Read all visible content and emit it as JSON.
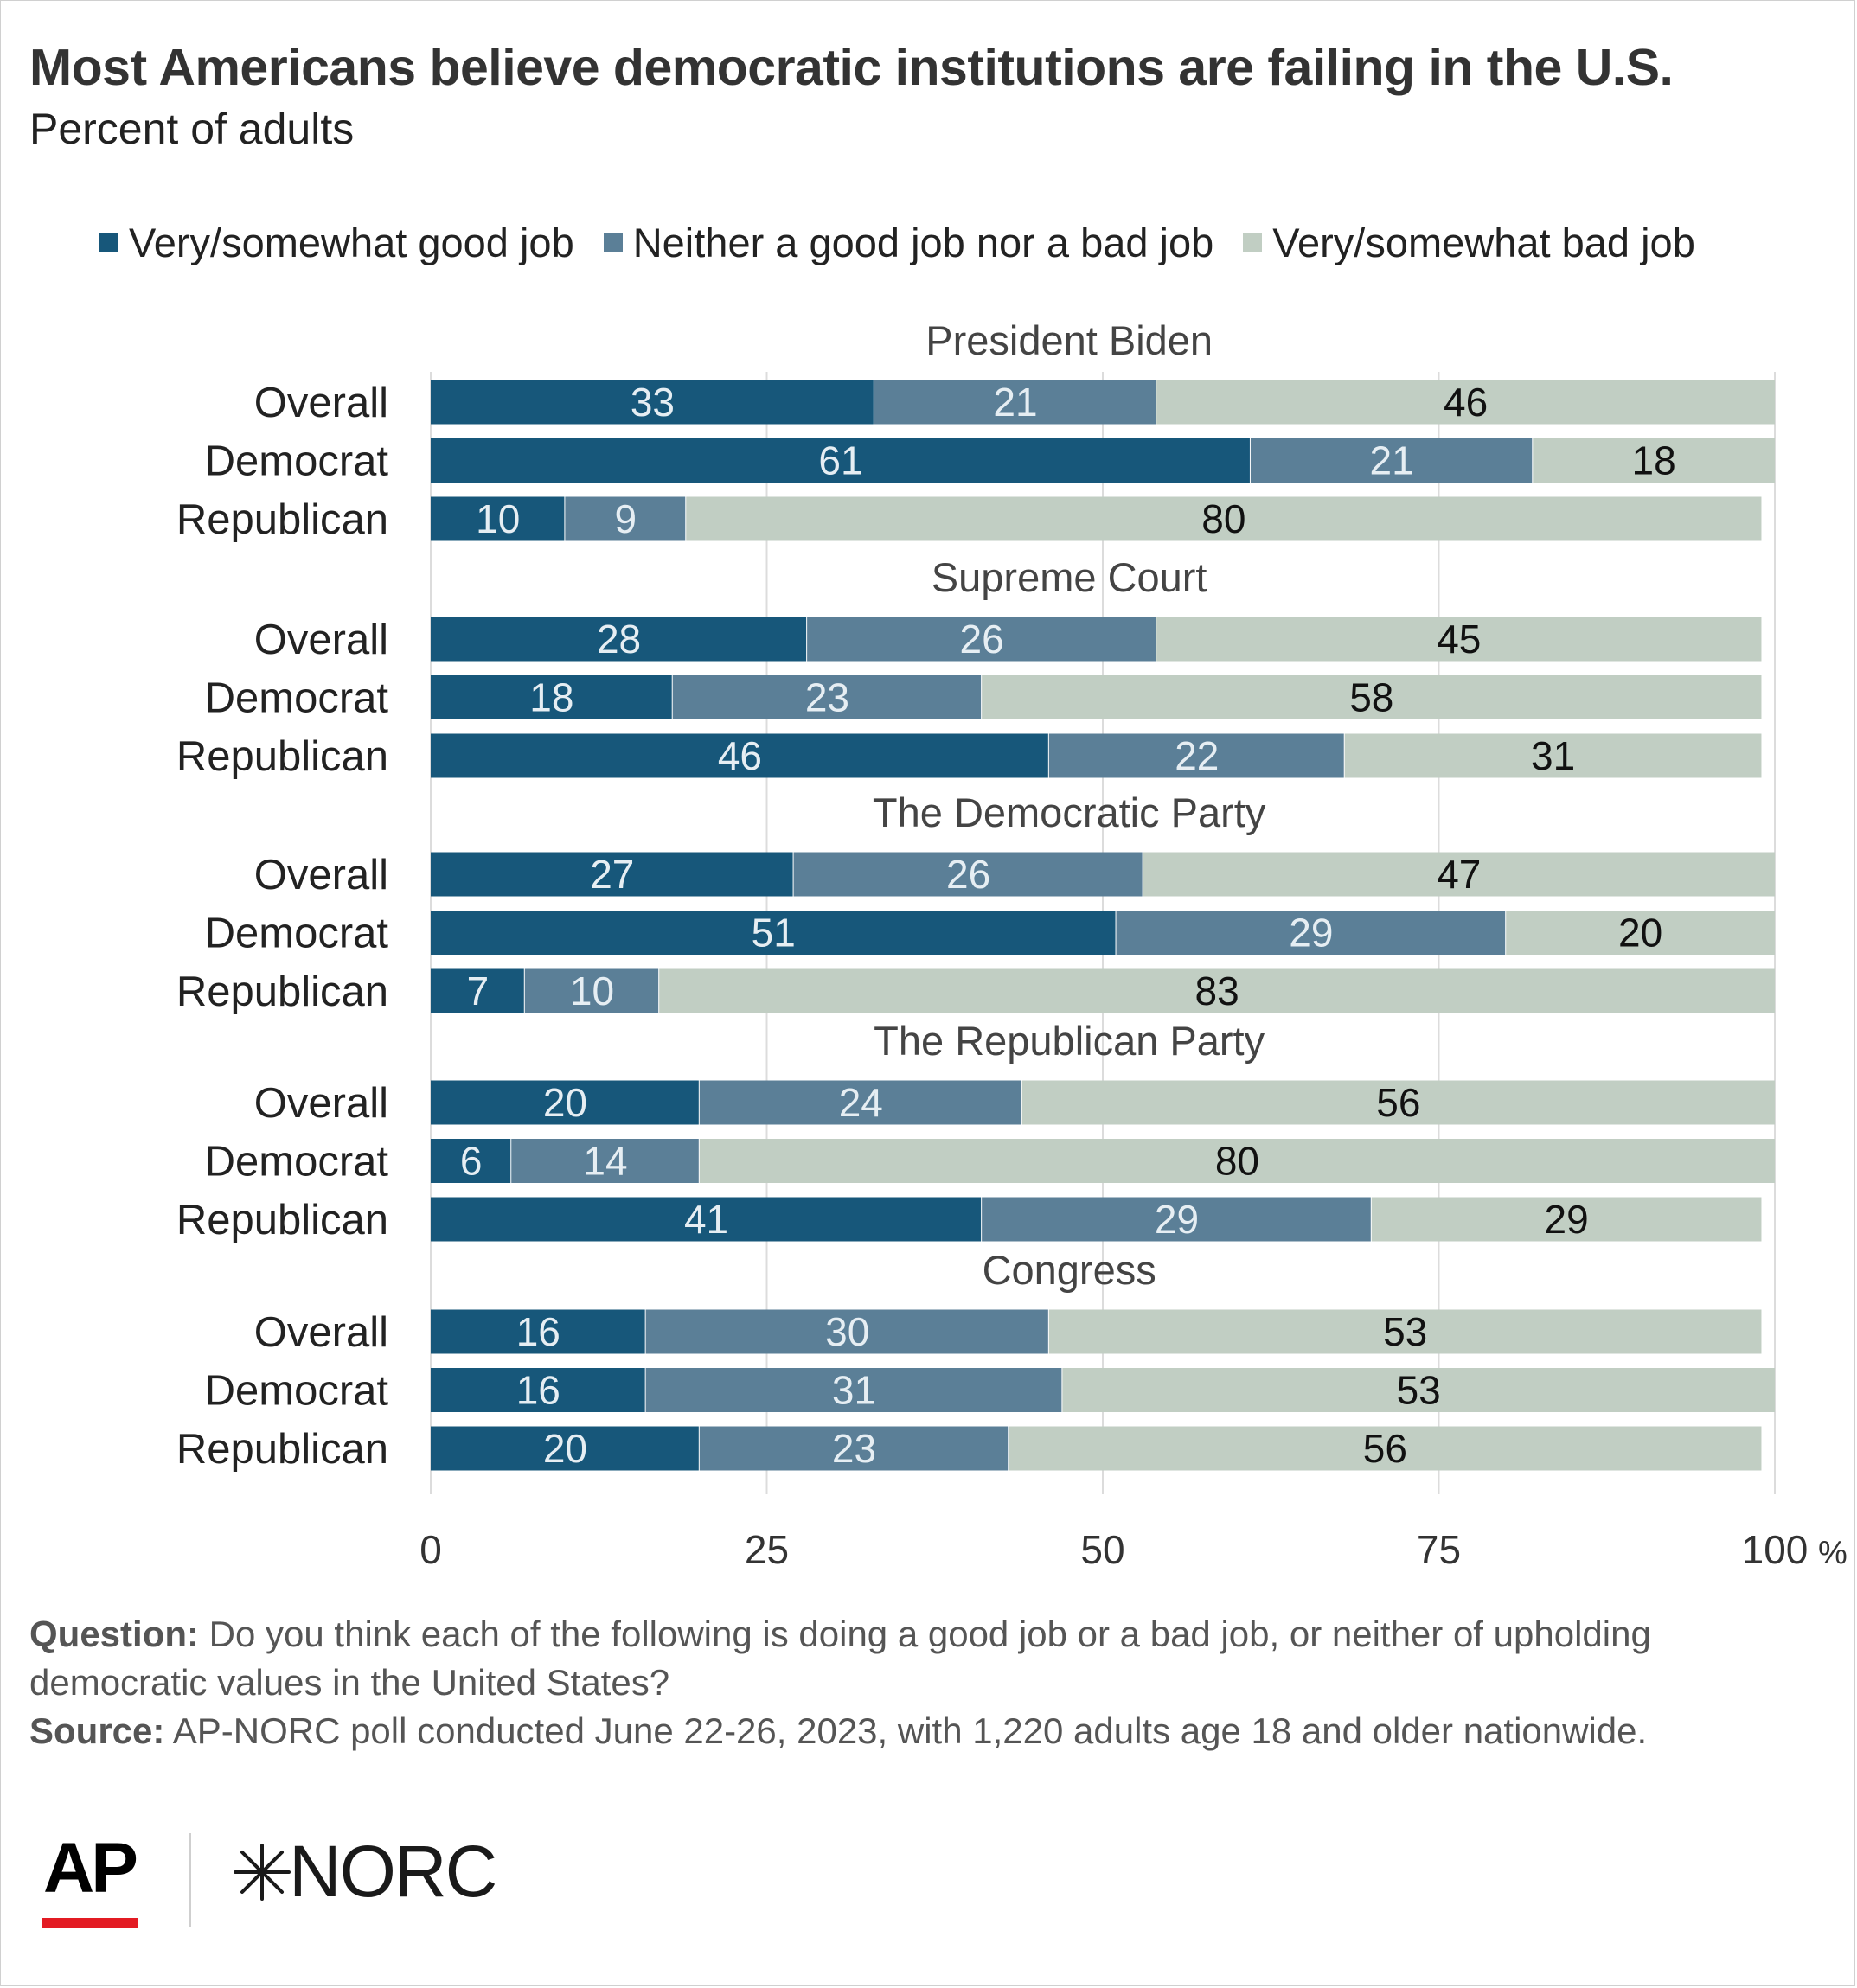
{
  "title": "Most Americans believe democratic institutions are failing in the U.S.",
  "subtitle": "Percent of adults",
  "colors": {
    "good": "#17577a",
    "neither": "#5b7f97",
    "bad": "#c1cec3",
    "grid": "#dcdcdc",
    "label_dark_bar": "#e6eef3",
    "label_light_bar": "#111111"
  },
  "chart_data": {
    "type": "bar",
    "orientation": "horizontal",
    "stacked": true,
    "title": "Most Americans believe democratic institutions are failing in the U.S.",
    "subtitle": "Percent of adults",
    "legend_position": "top",
    "legend": [
      "Very/somewhat good job",
      "Neither a good job nor a bad job",
      "Very/somewhat bad job"
    ],
    "xlim": [
      0,
      100
    ],
    "x_ticks": [
      "0",
      "25",
      "50",
      "75",
      "100"
    ],
    "x_unit": "%",
    "grid": true,
    "groups": [
      {
        "name": "President Biden",
        "rows": [
          {
            "label": "Overall",
            "values": [
              33,
              21,
              46
            ]
          },
          {
            "label": "Democrat",
            "values": [
              61,
              21,
              18
            ]
          },
          {
            "label": "Republican",
            "values": [
              10,
              9,
              80
            ]
          }
        ]
      },
      {
        "name": "Supreme Court",
        "rows": [
          {
            "label": "Overall",
            "values": [
              28,
              26,
              45
            ]
          },
          {
            "label": "Democrat",
            "values": [
              18,
              23,
              58
            ]
          },
          {
            "label": "Republican",
            "values": [
              46,
              22,
              31
            ]
          }
        ]
      },
      {
        "name": "The Democratic Party",
        "rows": [
          {
            "label": "Overall",
            "values": [
              27,
              26,
              47
            ]
          },
          {
            "label": "Democrat",
            "values": [
              51,
              29,
              20
            ]
          },
          {
            "label": "Republican",
            "values": [
              7,
              10,
              83
            ]
          }
        ]
      },
      {
        "name": "The Republican Party",
        "rows": [
          {
            "label": "Overall",
            "values": [
              20,
              24,
              56
            ]
          },
          {
            "label": "Democrat",
            "values": [
              6,
              14,
              80
            ]
          },
          {
            "label": "Republican",
            "values": [
              41,
              29,
              29
            ]
          }
        ]
      },
      {
        "name": "Congress",
        "rows": [
          {
            "label": "Overall",
            "values": [
              16,
              30,
              53
            ]
          },
          {
            "label": "Democrat",
            "values": [
              16,
              31,
              53
            ]
          },
          {
            "label": "Republican",
            "values": [
              20,
              23,
              56
            ]
          }
        ]
      }
    ]
  },
  "footer": {
    "question_label": "Question:",
    "question_text": " Do you think each of the following is doing a good job or a bad job, or neither of upholding democratic values in the United States?",
    "source_label": "Source:",
    "source_text": " AP-NORC poll conducted June 22-26, 2023, with 1,220 adults age 18 and older nationwide."
  },
  "logos": {
    "ap": "AP",
    "norc": "NORC"
  }
}
